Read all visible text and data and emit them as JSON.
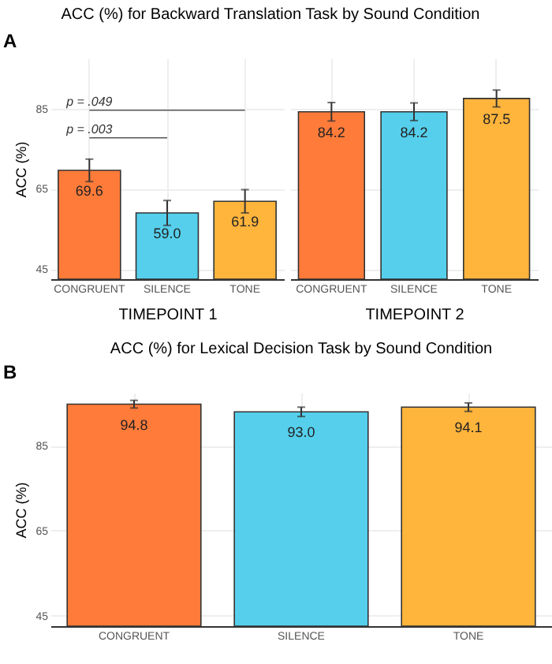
{
  "chart_data": [
    {
      "type": "bar",
      "title": "ACC (%) for Backward Translation Task by Sound Condition",
      "xlabel": "TIMEPOINT 1",
      "ylabel": "ACC (%)",
      "categories": [
        "CONGRUENT",
        "SILENCE",
        "TONE"
      ],
      "values": [
        69.6,
        59.0,
        61.9
      ],
      "colors": [
        "#ff7b3a",
        "#55cfec",
        "#ffb43c"
      ],
      "errors": [
        2.8,
        3.1,
        2.9
      ],
      "value_labels": [
        "69.6",
        "59.0",
        "61.9"
      ],
      "ylim": [
        42.5,
        97.5
      ],
      "yticks": [
        45,
        65,
        85
      ],
      "grid": true,
      "annotations": [
        "A",
        "p = .003",
        "p = .049"
      ]
    },
    {
      "type": "bar",
      "xlabel": "TIMEPOINT 2",
      "categories": [
        "CONGRUENT",
        "SILENCE",
        "TONE"
      ],
      "values": [
        84.2,
        84.2,
        87.5
      ],
      "colors": [
        "#ff7b3a",
        "#55cfec",
        "#ffb43c"
      ],
      "errors": [
        2.3,
        2.2,
        2.1
      ],
      "value_labels": [
        "84.2",
        "84.2",
        "87.5"
      ],
      "ylim": [
        42.5,
        97.5
      ],
      "yticks": [
        45,
        65,
        85
      ],
      "grid": true,
      "tick_labels": "x"
    },
    {
      "type": "bar",
      "title": "ACC (%) for Lexical Decision Task by Sound Condition",
      "ylabel": "ACC (%)",
      "categories": [
        "CONGRUENT",
        "SILENCE",
        "TONE"
      ],
      "values": [
        94.8,
        93.0,
        94.1
      ],
      "colors": [
        "#ff7b3a",
        "#55cfec",
        "#ffb43c"
      ],
      "errors": [
        0.9,
        1.1,
        1.0
      ],
      "value_labels": [
        "94.8",
        "93.0",
        "94.1"
      ],
      "ylim": [
        42.5,
        97.5
      ],
      "yticks": [
        45,
        65,
        85
      ],
      "grid": true,
      "annotations": [
        "B"
      ]
    }
  ]
}
